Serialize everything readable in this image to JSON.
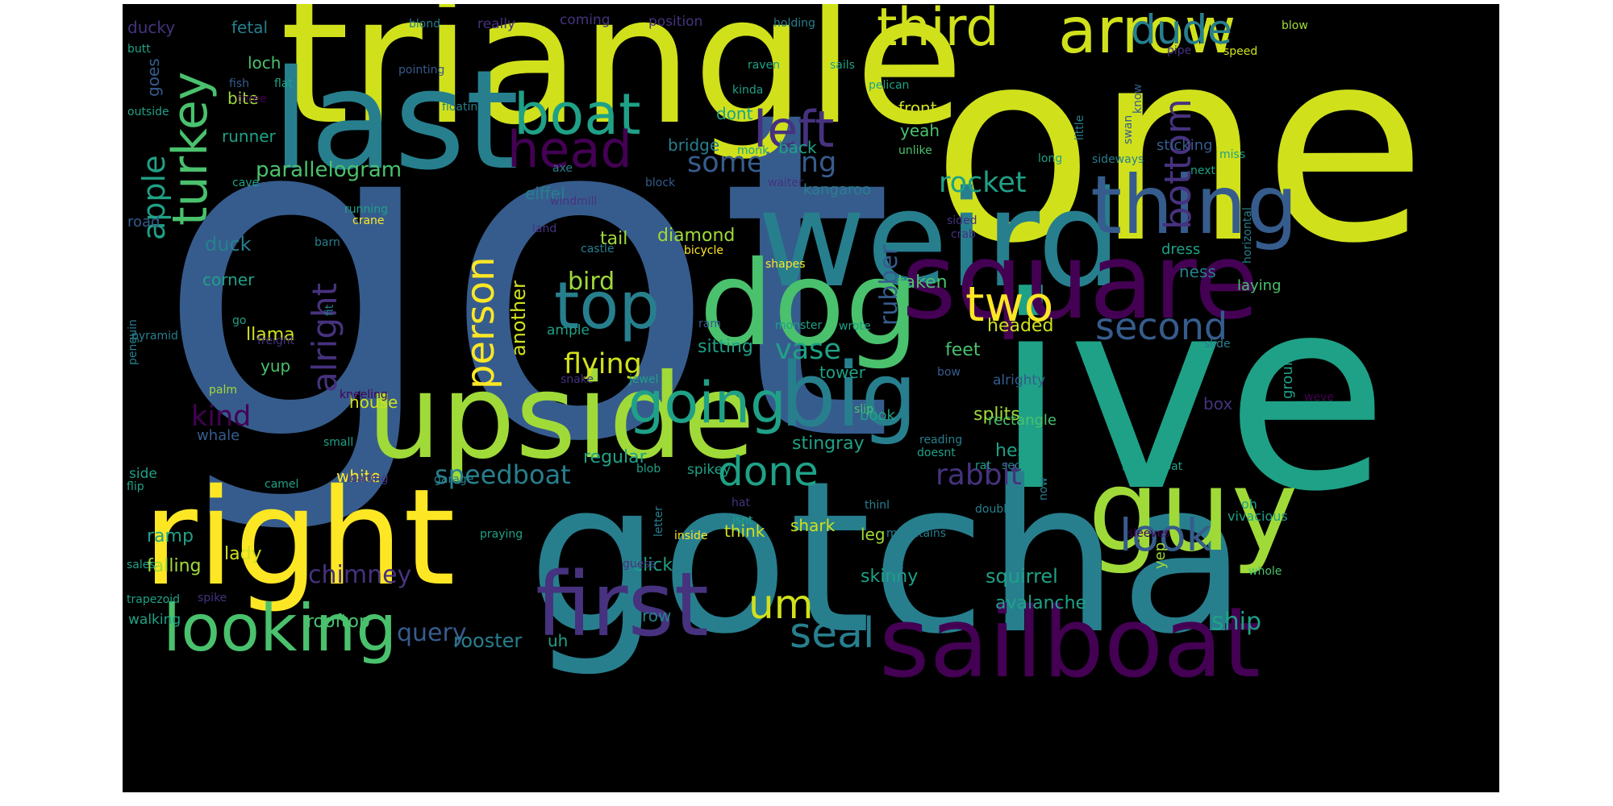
{
  "wordcloud": {
    "background": "#000000",
    "palette": {
      "v0": "#440154",
      "v1": "#46327e",
      "v2": "#365c8d",
      "v3": "#277f8e",
      "v4": "#1fa187",
      "v5": "#4ac16d",
      "v6": "#a0da39",
      "v7": "#d0e11c",
      "v8": "#fde725"
    },
    "words": [
      {
        "text": "got",
        "color": "v2"
      },
      {
        "text": "one",
        "color": "v7"
      },
      {
        "text": "ive",
        "color": "v4"
      },
      {
        "text": "gotcha",
        "color": "v3"
      },
      {
        "text": "triangle",
        "color": "v7"
      },
      {
        "text": "weird",
        "color": "v3"
      },
      {
        "text": "last",
        "color": "v3"
      },
      {
        "text": "right",
        "color": "v8"
      },
      {
        "text": "upside",
        "color": "v6"
      },
      {
        "text": "dog",
        "color": "v5"
      },
      {
        "text": "guy",
        "color": "v6"
      },
      {
        "text": "square",
        "color": "v0"
      },
      {
        "text": "sailboat",
        "color": "v0"
      },
      {
        "text": "thing",
        "color": "v2"
      },
      {
        "text": "first",
        "color": "v1"
      },
      {
        "text": "arrow",
        "color": "v7"
      },
      {
        "text": "big",
        "color": "v3"
      },
      {
        "text": "looking",
        "color": "v5"
      },
      {
        "text": "top",
        "color": "v3"
      },
      {
        "text": "boat",
        "color": "v4"
      },
      {
        "text": "going",
        "color": "v4"
      },
      {
        "text": "two",
        "color": "v8"
      },
      {
        "text": "third",
        "color": "v7"
      },
      {
        "text": "dude",
        "color": "v3"
      },
      {
        "text": "last",
        "color": "v3"
      },
      {
        "text": "head",
        "color": "v0"
      },
      {
        "text": "left",
        "color": "v1"
      },
      {
        "text": "turkey",
        "color": "v5"
      },
      {
        "text": "second",
        "color": "v2"
      },
      {
        "text": "um",
        "color": "v7"
      },
      {
        "text": "seal",
        "color": "v3"
      },
      {
        "text": "look",
        "color": "v2"
      },
      {
        "text": "done",
        "color": "v4"
      },
      {
        "text": "bottom",
        "color": "v1"
      },
      {
        "text": "person",
        "color": "v8"
      },
      {
        "text": "alright",
        "color": "v1"
      },
      {
        "text": "something",
        "color": "v2"
      },
      {
        "text": "rocket",
        "color": "v4"
      },
      {
        "text": "apple",
        "color": "v4"
      },
      {
        "text": "flying",
        "color": "v7"
      },
      {
        "text": "rabbit",
        "color": "v1"
      },
      {
        "text": "speedboat",
        "color": "v3"
      },
      {
        "text": "chimney",
        "color": "v1"
      },
      {
        "text": "kind",
        "color": "v0"
      },
      {
        "text": "vase",
        "color": "v4"
      },
      {
        "text": "bird",
        "color": "v6"
      },
      {
        "text": "rubber",
        "color": "v2"
      },
      {
        "text": "ship",
        "color": "v4"
      },
      {
        "text": "query",
        "color": "v2"
      },
      {
        "text": "parallelogram",
        "color": "v5"
      },
      {
        "text": "another",
        "color": "v7"
      },
      {
        "text": "squirrel",
        "color": "v4"
      },
      {
        "text": "avalanche",
        "color": "v4"
      },
      {
        "text": "rooster",
        "color": "v3"
      },
      {
        "text": "duck",
        "color": "v3"
      },
      {
        "text": "stingray",
        "color": "v4"
      },
      {
        "text": "splits",
        "color": "v6"
      },
      {
        "text": "tail",
        "color": "v6"
      },
      {
        "text": "diamond",
        "color": "v6"
      },
      {
        "text": "taken",
        "color": "v5"
      },
      {
        "text": "headed",
        "color": "v7"
      },
      {
        "text": "feet",
        "color": "v5"
      },
      {
        "text": "sitting",
        "color": "v4"
      },
      {
        "text": "regular",
        "color": "v4"
      },
      {
        "text": "hes",
        "color": "v4"
      },
      {
        "text": "llama",
        "color": "v7"
      },
      {
        "text": "lady",
        "color": "v7"
      },
      {
        "text": "falling",
        "color": "v6"
      },
      {
        "text": "ramp",
        "color": "v4"
      },
      {
        "text": "rooftop",
        "color": "v5"
      },
      {
        "text": "uh",
        "color": "v4"
      },
      {
        "text": "crow",
        "color": "v3"
      },
      {
        "text": "click",
        "color": "v4"
      },
      {
        "text": "skinny",
        "color": "v4"
      },
      {
        "text": "think",
        "color": "v7"
      },
      {
        "text": "shark",
        "color": "v7"
      },
      {
        "text": "leg",
        "color": "v6"
      },
      {
        "text": "book",
        "color": "v4"
      },
      {
        "text": "house",
        "color": "v7"
      },
      {
        "text": "white",
        "color": "v8"
      },
      {
        "text": "whale",
        "color": "v2"
      },
      {
        "text": "tower",
        "color": "v4"
      },
      {
        "text": "yup",
        "color": "v5"
      },
      {
        "text": "corner",
        "color": "v4"
      },
      {
        "text": "loch",
        "color": "v5"
      },
      {
        "text": "bite",
        "color": "v6"
      },
      {
        "text": "runner",
        "color": "v4"
      },
      {
        "text": "goes",
        "color": "v2"
      },
      {
        "text": "ducky",
        "color": "v1"
      },
      {
        "text": "fetal",
        "color": "v3"
      },
      {
        "text": "eiffel",
        "color": "v3"
      },
      {
        "text": "tree",
        "color": "v2"
      },
      {
        "text": "dont",
        "color": "v4"
      },
      {
        "text": "back",
        "color": "v4"
      },
      {
        "text": "bridge",
        "color": "v3"
      },
      {
        "text": "front",
        "color": "v7"
      },
      {
        "text": "yeah",
        "color": "v5"
      },
      {
        "text": "sticking",
        "color": "v2"
      },
      {
        "text": "ness",
        "color": "v3"
      },
      {
        "text": "dress",
        "color": "v4"
      },
      {
        "text": "laying",
        "color": "v5"
      },
      {
        "text": "box",
        "color": "v1"
      },
      {
        "text": "ground",
        "color": "v4"
      },
      {
        "text": "yep",
        "color": "v6"
      },
      {
        "text": "oh",
        "color": "v4"
      },
      {
        "text": "vivacious",
        "color": "v4"
      },
      {
        "text": "kangaroo",
        "color": "v3"
      },
      {
        "text": "road",
        "color": "v2"
      },
      {
        "text": "really",
        "color": "v1"
      },
      {
        "text": "coming",
        "color": "v1"
      },
      {
        "text": "position",
        "color": "v1"
      },
      {
        "text": "holding",
        "color": "v3"
      },
      {
        "text": "blow",
        "color": "v6"
      },
      {
        "text": "blond",
        "color": "v3"
      },
      {
        "text": "butt",
        "color": "v4"
      },
      {
        "text": "raven",
        "color": "v4"
      },
      {
        "text": "pipe",
        "color": "v1"
      },
      {
        "text": "speed",
        "color": "v7"
      },
      {
        "text": "sails",
        "color": "v4"
      },
      {
        "text": "pelican",
        "color": "v4"
      },
      {
        "text": "pointing",
        "color": "v2"
      },
      {
        "text": "fish",
        "color": "v2"
      },
      {
        "text": "flat",
        "color": "v4"
      },
      {
        "text": "kinda",
        "color": "v4"
      },
      {
        "text": "three",
        "color": "v0"
      },
      {
        "text": "know",
        "color": "v2"
      },
      {
        "text": "floating",
        "color": "v3"
      },
      {
        "text": "outside",
        "color": "v4"
      },
      {
        "text": "little",
        "color": "v3"
      },
      {
        "text": "swan",
        "color": "v2"
      },
      {
        "text": "unlike",
        "color": "v5"
      },
      {
        "text": "miss",
        "color": "v4"
      },
      {
        "text": "monk",
        "color": "v4"
      },
      {
        "text": "long",
        "color": "v4"
      },
      {
        "text": "sideways",
        "color": "v3"
      },
      {
        "text": "axe",
        "color": "v3"
      },
      {
        "text": "next",
        "color": "v4"
      },
      {
        "text": "cave",
        "color": "v4"
      },
      {
        "text": "block",
        "color": "v2"
      },
      {
        "text": "waiter",
        "color": "v1"
      },
      {
        "text": "windmill",
        "color": "v1"
      },
      {
        "text": "running",
        "color": "v4"
      },
      {
        "text": "crane",
        "color": "v8"
      },
      {
        "text": "sided",
        "color": "v1"
      },
      {
        "text": "crab",
        "color": "v1"
      },
      {
        "text": "land",
        "color": "v1"
      },
      {
        "text": "barn",
        "color": "v3"
      },
      {
        "text": "castle",
        "color": "v3"
      },
      {
        "text": "bicycle",
        "color": "v8"
      },
      {
        "text": "shapes",
        "color": "v8"
      },
      {
        "text": "horizontal",
        "color": "v3"
      },
      {
        "text": "go",
        "color": "v4"
      },
      {
        "text": "fit",
        "color": "v3"
      },
      {
        "text": "pyramid",
        "color": "v3"
      },
      {
        "text": "ram",
        "color": "v2"
      },
      {
        "text": "monster",
        "color": "v4"
      },
      {
        "text": "wrote",
        "color": "v4"
      },
      {
        "text": "ample",
        "color": "v4"
      },
      {
        "text": "freight",
        "color": "v1"
      },
      {
        "text": "slide",
        "color": "v3"
      },
      {
        "text": "penguin",
        "color": "v3"
      },
      {
        "text": "bow",
        "color": "v2"
      },
      {
        "text": "snake",
        "color": "v1"
      },
      {
        "text": "jewel",
        "color": "v4"
      },
      {
        "text": "palm",
        "color": "v6"
      },
      {
        "text": "kneeling",
        "color": "v0"
      },
      {
        "text": "alrighty",
        "color": "v2"
      },
      {
        "text": "slip",
        "color": "v5"
      },
      {
        "text": "weve",
        "color": "v0"
      },
      {
        "text": "small",
        "color": "v4"
      },
      {
        "text": "reading",
        "color": "v3"
      },
      {
        "text": "doesnt",
        "color": "v4"
      },
      {
        "text": "rectangle",
        "color": "v5"
      },
      {
        "text": "side",
        "color": "v4"
      },
      {
        "text": "loading",
        "color": "v1"
      },
      {
        "text": "garage",
        "color": "v3"
      },
      {
        "text": "blob",
        "color": "v4"
      },
      {
        "text": "spikey",
        "color": "v4"
      },
      {
        "text": "rat",
        "color": "v4"
      },
      {
        "text": "sec",
        "color": "v3"
      },
      {
        "text": "steamboat",
        "color": "v4"
      },
      {
        "text": "flip",
        "color": "v4"
      },
      {
        "text": "camel",
        "color": "v4"
      },
      {
        "text": "hat",
        "color": "v1"
      },
      {
        "text": "isnt",
        "color": "v4"
      },
      {
        "text": "thinl",
        "color": "v3"
      },
      {
        "text": "double",
        "color": "v3"
      },
      {
        "text": "now",
        "color": "v3"
      },
      {
        "text": "mountains",
        "color": "v3"
      },
      {
        "text": "inside",
        "color": "v8"
      },
      {
        "text": "praying",
        "color": "v4"
      },
      {
        "text": "letter",
        "color": "v3"
      },
      {
        "text": "sleeves",
        "color": "v0"
      },
      {
        "text": "sales",
        "color": "v4"
      },
      {
        "text": "guess",
        "color": "v1"
      },
      {
        "text": "ok",
        "color": "v3"
      },
      {
        "text": "whole",
        "color": "v5"
      },
      {
        "text": "trapezoid",
        "color": "v4"
      },
      {
        "text": "spike",
        "color": "v1"
      },
      {
        "text": "walking",
        "color": "v4"
      },
      {
        "text": "whatever",
        "color": "v3"
      }
    ]
  }
}
